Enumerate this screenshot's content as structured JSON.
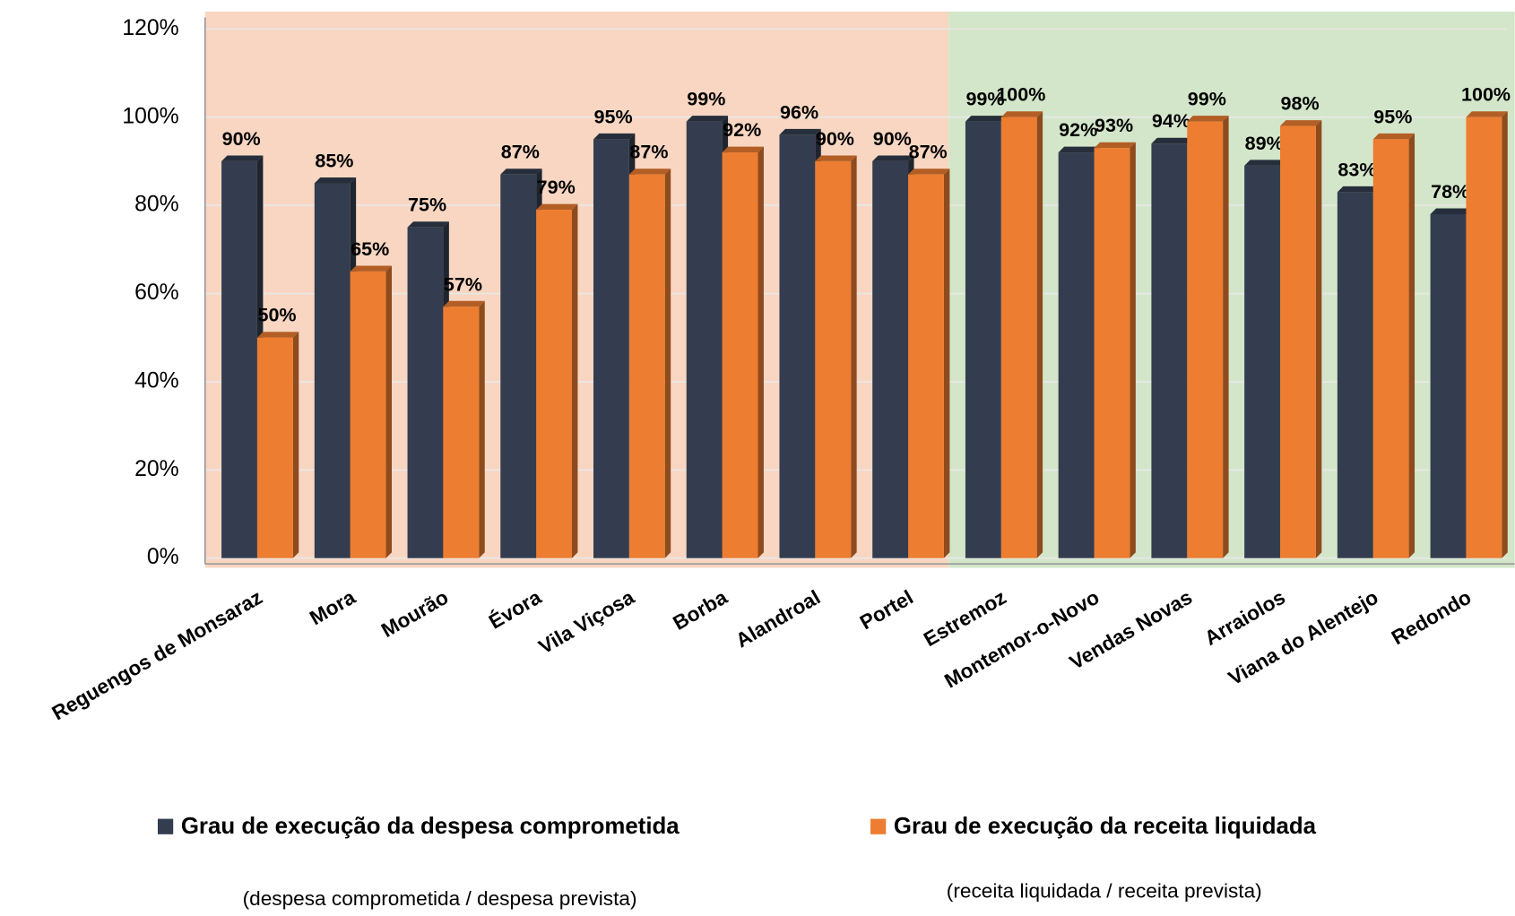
{
  "chart_data": {
    "type": "bar",
    "categories": [
      "Reguengos de Monsaraz",
      "Mora",
      "Mourão",
      "Évora",
      "Vila Viçosa",
      "Borba",
      "Alandroal",
      "Portel",
      "Estremoz",
      "Montemor-o-Novo",
      "Vendas Novas",
      "Arraiolos",
      "Viana do Alentejo",
      "Redondo"
    ],
    "series": [
      {
        "name": "Grau de execução da despesa comprometida",
        "color": "#333d4f",
        "values": [
          90,
          85,
          75,
          87,
          95,
          99,
          96,
          90,
          99,
          92,
          94,
          89,
          83,
          78
        ],
        "value_labels": [
          "90%",
          "85%",
          "75%",
          "87%",
          "95%",
          "99%",
          "96%",
          "90%",
          "99%",
          "92%",
          "94%",
          "89%",
          "83%",
          "78%"
        ]
      },
      {
        "name": "Grau de execução da receita liquidada",
        "color": "#ed7d31",
        "values": [
          50,
          65,
          57,
          79,
          87,
          92,
          90,
          87,
          100,
          93,
          99,
          98,
          95,
          100
        ],
        "value_labels": [
          "50%",
          "65%",
          "57%",
          "79%",
          "87%",
          "92%",
          "90%",
          "87%",
          "100%",
          "93%",
          "99%",
          "98%",
          "95%",
          "100%"
        ]
      }
    ],
    "annotations": [
      "(despesa comprometida / despesa prevista)",
      "(receita liquidada / receita prevista)"
    ],
    "ylim": [
      0,
      120
    ],
    "yticks": [
      {
        "value": 0,
        "label": "0%"
      },
      {
        "value": 20,
        "label": "20%"
      },
      {
        "value": 40,
        "label": "40%"
      },
      {
        "value": 60,
        "label": "60%"
      },
      {
        "value": 80,
        "label": "80%"
      },
      {
        "value": 100,
        "label": "100%"
      },
      {
        "value": 120,
        "label": "120%"
      }
    ],
    "grid": true
  }
}
